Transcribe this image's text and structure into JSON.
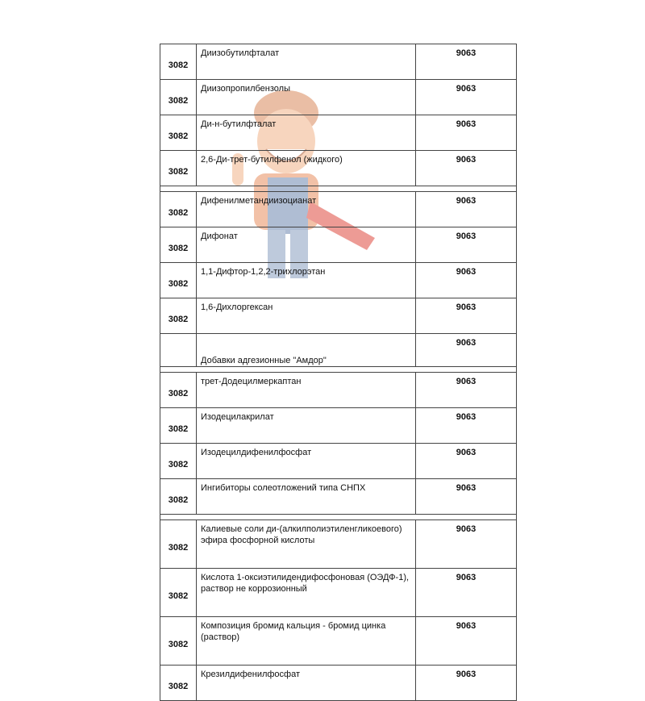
{
  "rows": [
    {
      "type": "row",
      "code": "3082",
      "name": "Диизобутилфталат",
      "num": "9063"
    },
    {
      "type": "row",
      "code": "3082",
      "name": "Диизопропилбензолы",
      "num": "9063"
    },
    {
      "type": "row",
      "code": "3082",
      "name": "Ди-н-бутилфталат",
      "num": "9063"
    },
    {
      "type": "row",
      "code": "3082",
      "name": "2,6-Ди-трет-бутилфенол (жидкого)",
      "num": "9063"
    },
    {
      "type": "sep"
    },
    {
      "type": "row",
      "code": "3082",
      "name": "Дифенилметандиизоцианат",
      "num": "9063"
    },
    {
      "type": "row",
      "code": "3082",
      "name": "Дифонат",
      "num": "9063"
    },
    {
      "type": "row",
      "code": "3082",
      "name": "1,1-Дифтор-1,2,2-трихлорэтан",
      "num": "9063"
    },
    {
      "type": "row",
      "code": "3082",
      "name": "1,6-Дихлоргексан",
      "num": "9063"
    },
    {
      "type": "row",
      "code": "",
      "name": "Добавки адгезионные \"Амдор\"",
      "num": "9063",
      "valign": "bottom"
    },
    {
      "type": "sep"
    },
    {
      "type": "row",
      "code": "3082",
      "name": "трет-Додецилмеркаптан",
      "num": "9063"
    },
    {
      "type": "row",
      "code": "3082",
      "name": "Изодецилакрилат",
      "num": "9063"
    },
    {
      "type": "row",
      "code": "3082",
      "name": "Изодецилдифенилфосфат",
      "num": "9063"
    },
    {
      "type": "row",
      "code": "3082",
      "name": "Ингибиторы солеотложений типа СНПХ",
      "num": "9063"
    },
    {
      "type": "sep"
    },
    {
      "type": "row",
      "code": "3082",
      "name": "Калиевые соли ди-(алкилполиэтиленгликоевого) эфира фосфорной кислоты",
      "num": "9063",
      "tall": true
    },
    {
      "type": "row",
      "code": "3082",
      "name": "Кислота 1-оксиэтилидендифосфоновая (ОЭДФ-1), раствор не коррозионный",
      "num": "9063",
      "tall": true
    },
    {
      "type": "row",
      "code": "3082",
      "name": "Композиция бромид кальция - бромид цинка (раствор)",
      "num": "9063",
      "tall": true
    },
    {
      "type": "row",
      "code": "3082",
      "name": "Крезилдифенилфосфат",
      "num": "9063"
    }
  ],
  "watermark": {
    "icon": "mascot-watermark",
    "colors": [
      "#e8925a",
      "#3b5a8a",
      "#d9332e"
    ]
  }
}
